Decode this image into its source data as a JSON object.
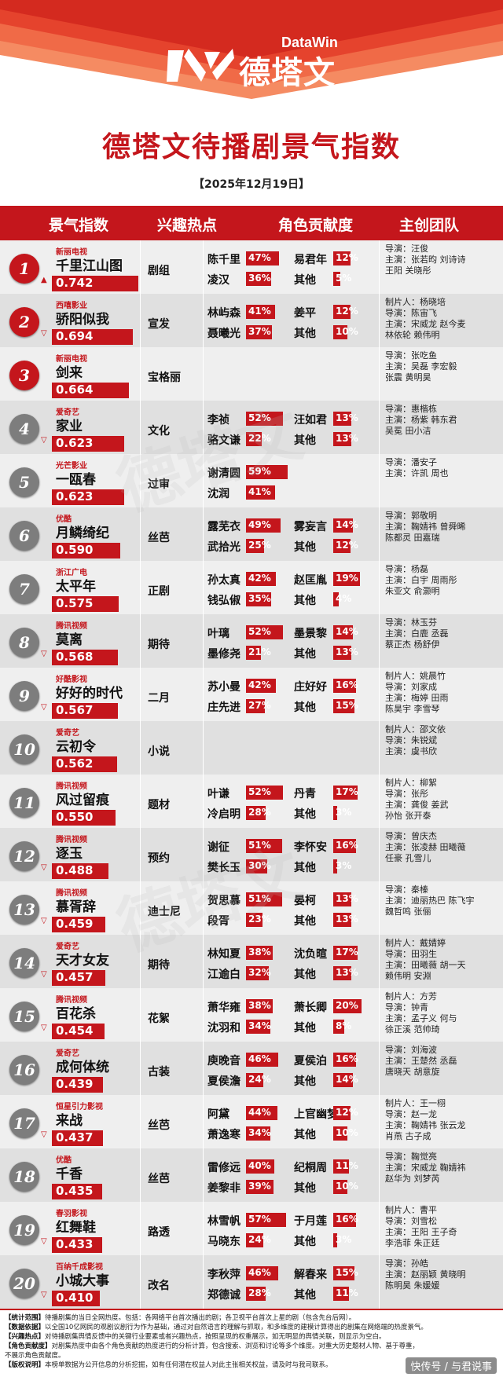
{
  "brand": {
    "logo_cn": "德塔文",
    "logo_en": "DataWin",
    "accent": "#c4161c",
    "band_colors": [
      "#d42a1f",
      "#e5432d",
      "#f06a47",
      "#f58b62"
    ]
  },
  "title": "德塔文待播剧景气指数",
  "date": "【2025年12月19日】",
  "columns": [
    "景气指数",
    "兴趣热点",
    "角色贡献度",
    "主创团队"
  ],
  "rows": [
    {
      "rank": "1",
      "trend": "▲",
      "platform": "新丽电视",
      "name": "千里江山图",
      "index": "0.742",
      "index_frac": 0.742,
      "hot": "剧组",
      "c1": {
        "name": "陈千里",
        "pct": "47%"
      },
      "c2": {
        "name": "易君年",
        "pct": "12%"
      },
      "c3": {
        "name": "凌汉",
        "pct": "36%"
      },
      "c4": {
        "name": "其他",
        "pct": "5%"
      },
      "team": [
        "导演：汪俊",
        "主演：张若昀  刘诗诗",
        "      王阳  关晓彤"
      ]
    },
    {
      "rank": "2",
      "trend": "▽",
      "platform": "西嘻影业",
      "name": "骄阳似我",
      "index": "0.694",
      "index_frac": 0.694,
      "hot": "宣发",
      "c1": {
        "name": "林屿森",
        "pct": "41%"
      },
      "c2": {
        "name": "姜平",
        "pct": "12%"
      },
      "c3": {
        "name": "聂曦光",
        "pct": "37%"
      },
      "c4": {
        "name": "其他",
        "pct": "10%"
      },
      "team": [
        "制片人：杨晓培",
        "导演：陈宙飞",
        "主演：宋威龙  赵今麦",
        "      林依轮  赖伟明"
      ]
    },
    {
      "rank": "3",
      "trend": "",
      "platform": "新丽电视",
      "name": "剑来",
      "index": "0.664",
      "index_frac": 0.664,
      "hot": "宝格丽",
      "c1": {
        "name": "",
        "pct": ""
      },
      "c2": {
        "name": "",
        "pct": ""
      },
      "c3": {
        "name": "",
        "pct": ""
      },
      "c4": {
        "name": "",
        "pct": ""
      },
      "team": [
        "导演：张吃鱼",
        "主演：吴磊  李宏毅",
        "      张震  黄明昊"
      ]
    },
    {
      "rank": "4",
      "trend": "▽",
      "platform": "爱奇艺",
      "name": "家业",
      "index": "0.623",
      "index_frac": 0.623,
      "hot": "文化",
      "c1": {
        "name": "李祯",
        "pct": "52%"
      },
      "c2": {
        "name": "汪如君",
        "pct": "13%"
      },
      "c3": {
        "name": "骆文谦",
        "pct": "22%"
      },
      "c4": {
        "name": "其他",
        "pct": "13%"
      },
      "team": [
        "导演：惠楷栋",
        "主演：杨紫  韩东君",
        "      吴冕  田小洁"
      ]
    },
    {
      "rank": "5",
      "trend": "",
      "platform": "光芒影业",
      "name": "一瓯春",
      "index": "0.623",
      "index_frac": 0.623,
      "hot": "过审",
      "c1": {
        "name": "谢清圆",
        "pct": "59%"
      },
      "c2": {
        "name": "",
        "pct": ""
      },
      "c3": {
        "name": "沈润",
        "pct": "41%"
      },
      "c4": {
        "name": "",
        "pct": ""
      },
      "team": [
        "导演：潘安子",
        "主演：许凯  周也"
      ]
    },
    {
      "rank": "6",
      "trend": "",
      "platform": "优酷",
      "name": "月鳞绮纪",
      "index": "0.590",
      "index_frac": 0.59,
      "hot": "丝芭",
      "c1": {
        "name": "露芜衣",
        "pct": "49%"
      },
      "c2": {
        "name": "雾妄言",
        "pct": "14%"
      },
      "c3": {
        "name": "武拾光",
        "pct": "25%"
      },
      "c4": {
        "name": "其他",
        "pct": "12%"
      },
      "team": [
        "导演：郭敬明",
        "主演：鞠婧祎  曾舜晞",
        "      陈都灵  田嘉瑞"
      ]
    },
    {
      "rank": "7",
      "trend": "",
      "platform": "浙江广电",
      "name": "太平年",
      "index": "0.575",
      "index_frac": 0.575,
      "hot": "正剧",
      "c1": {
        "name": "孙太真",
        "pct": "42%"
      },
      "c2": {
        "name": "赵匡胤",
        "pct": "19%"
      },
      "c3": {
        "name": "钱弘俶",
        "pct": "35%"
      },
      "c4": {
        "name": "其他",
        "pct": "4%"
      },
      "team": [
        "导演：杨磊",
        "主演：白宇  周雨彤",
        "      朱亚文  俞灏明"
      ]
    },
    {
      "rank": "8",
      "trend": "▽",
      "platform": "腾讯视频",
      "name": "莫离",
      "index": "0.568",
      "index_frac": 0.568,
      "hot": "期待",
      "c1": {
        "name": "叶璃",
        "pct": "52%"
      },
      "c2": {
        "name": "墨景黎",
        "pct": "14%"
      },
      "c3": {
        "name": "墨修尧",
        "pct": "21%"
      },
      "c4": {
        "name": "其他",
        "pct": "13%"
      },
      "team": [
        "导演：林玉芬",
        "主演：白鹿  丞磊",
        "      蔡正杰  杨舒伊"
      ]
    },
    {
      "rank": "9",
      "trend": "▽",
      "platform": "好酷影视",
      "name": "好好的时代",
      "index": "0.567",
      "index_frac": 0.567,
      "hot": "二月",
      "c1": {
        "name": "苏小曼",
        "pct": "42%"
      },
      "c2": {
        "name": "庄好好",
        "pct": "16%"
      },
      "c3": {
        "name": "庄先进",
        "pct": "27%"
      },
      "c4": {
        "name": "其他",
        "pct": "15%"
      },
      "team": [
        "制片人：姚晨竹",
        "导演：刘家成",
        "主演：梅婷  田雨",
        "      陈昊宇  李雪琴"
      ]
    },
    {
      "rank": "10",
      "trend": "",
      "platform": "爱奇艺",
      "name": "云初令",
      "index": "0.562",
      "index_frac": 0.562,
      "hot": "小说",
      "c1": {
        "name": "",
        "pct": ""
      },
      "c2": {
        "name": "",
        "pct": ""
      },
      "c3": {
        "name": "",
        "pct": ""
      },
      "c4": {
        "name": "",
        "pct": ""
      },
      "team": [
        "制片人：邵文依",
        "导演：朱锐斌",
        "主演：虞书欣"
      ]
    },
    {
      "rank": "11",
      "trend": "",
      "platform": "腾讯视频",
      "name": "风过留痕",
      "index": "0.550",
      "index_frac": 0.55,
      "hot": "题材",
      "c1": {
        "name": "叶谦",
        "pct": "52%"
      },
      "c2": {
        "name": "丹青",
        "pct": "17%"
      },
      "c3": {
        "name": "冷启明",
        "pct": "28%"
      },
      "c4": {
        "name": "其他",
        "pct": "3%"
      },
      "team": [
        "制片人：柳絮",
        "导演：张彤",
        "主演：龚俊  姜武",
        "      孙怡  张开泰"
      ]
    },
    {
      "rank": "12",
      "trend": "▽",
      "platform": "腾讯视频",
      "name": "逐玉",
      "index": "0.488",
      "index_frac": 0.488,
      "hot": "预约",
      "c1": {
        "name": "谢征",
        "pct": "51%"
      },
      "c2": {
        "name": "李怀安",
        "pct": "16%"
      },
      "c3": {
        "name": "樊长玉",
        "pct": "30%"
      },
      "c4": {
        "name": "其他",
        "pct": "3%"
      },
      "team": [
        "导演：曾庆杰",
        "主演：张凌赫  田曦薇",
        "      任豪  孔雪儿"
      ]
    },
    {
      "rank": "13",
      "trend": "▽",
      "platform": "腾讯视频",
      "name": "慕胥辞",
      "index": "0.459",
      "index_frac": 0.459,
      "hot": "迪士尼",
      "c1": {
        "name": "贺思慕",
        "pct": "51%"
      },
      "c2": {
        "name": "晏柯",
        "pct": "13%"
      },
      "c3": {
        "name": "段胥",
        "pct": "23%"
      },
      "c4": {
        "name": "其他",
        "pct": "13%"
      },
      "team": [
        "导演：秦榛",
        "主演：迪丽热巴  陈飞宇",
        "      魏哲鸣  张俪"
      ]
    },
    {
      "rank": "14",
      "trend": "▽",
      "platform": "爱奇艺",
      "name": "天才女友",
      "index": "0.457",
      "index_frac": 0.457,
      "hot": "期待",
      "c1": {
        "name": "林知夏",
        "pct": "38%"
      },
      "c2": {
        "name": "沈负暄",
        "pct": "17%"
      },
      "c3": {
        "name": "江逾白",
        "pct": "32%"
      },
      "c4": {
        "name": "其他",
        "pct": "13%"
      },
      "team": [
        "制片人：戴婧婷",
        "导演：田羽生",
        "主演：田曦薇  胡一天",
        "      赖伟明  安淵"
      ]
    },
    {
      "rank": "15",
      "trend": "▽",
      "platform": "腾讯视频",
      "name": "百花杀",
      "index": "0.454",
      "index_frac": 0.454,
      "hot": "花絮",
      "c1": {
        "name": "萧华雍",
        "pct": "38%"
      },
      "c2": {
        "name": "萧长卿",
        "pct": "20%"
      },
      "c3": {
        "name": "沈羽和",
        "pct": "34%"
      },
      "c4": {
        "name": "其他",
        "pct": "8%"
      },
      "team": [
        "制片人：方芳",
        "导演：钟青",
        "主演：孟子义  何与",
        "      徐正溪  范帅琦"
      ]
    },
    {
      "rank": "16",
      "trend": "",
      "platform": "爱奇艺",
      "name": "成何体统",
      "index": "0.439",
      "index_frac": 0.439,
      "hot": "古装",
      "c1": {
        "name": "庾晚音",
        "pct": "46%"
      },
      "c2": {
        "name": "夏侯泊",
        "pct": "16%"
      },
      "c3": {
        "name": "夏侯澹",
        "pct": "24%"
      },
      "c4": {
        "name": "其他",
        "pct": "14%"
      },
      "team": [
        "导演：刘海波",
        "主演：王楚然  丞磊",
        "      唐晓天  胡意旋"
      ]
    },
    {
      "rank": "17",
      "trend": "▽",
      "platform": "恒星引力影视",
      "name": "来战",
      "index": "0.437",
      "index_frac": 0.437,
      "hot": "丝芭",
      "c1": {
        "name": "阿黛",
        "pct": "44%"
      },
      "c2": {
        "name": "上官幽梦",
        "pct": "12%"
      },
      "c3": {
        "name": "萧逸寒",
        "pct": "34%"
      },
      "c4": {
        "name": "其他",
        "pct": "10%"
      },
      "team": [
        "制片人：王一栩",
        "导演：赵一龙",
        "主演：鞠婧祎  张云龙",
        "      肖燕  古子成"
      ]
    },
    {
      "rank": "18",
      "trend": "",
      "platform": "优酷",
      "name": "千香",
      "index": "0.435",
      "index_frac": 0.435,
      "hot": "丝芭",
      "c1": {
        "name": "雷修远",
        "pct": "40%"
      },
      "c2": {
        "name": "纪桐周",
        "pct": "11%"
      },
      "c3": {
        "name": "姜黎非",
        "pct": "39%"
      },
      "c4": {
        "name": "其他",
        "pct": "10%"
      },
      "team": [
        "导演：鞠觉亮",
        "主演：宋威龙  鞠婧祎",
        "      赵华为  刘梦芮"
      ]
    },
    {
      "rank": "19",
      "trend": "▽",
      "platform": "春羽影视",
      "name": "红舞鞋",
      "index": "0.433",
      "index_frac": 0.433,
      "hot": "路透",
      "c1": {
        "name": "林雪帆",
        "pct": "57%"
      },
      "c2": {
        "name": "于月莲",
        "pct": "16%"
      },
      "c3": {
        "name": "马晓东",
        "pct": "24%"
      },
      "c4": {
        "name": "其他",
        "pct": "3%"
      },
      "team": [
        "制片人：曹平",
        "导演：刘雪松",
        "主演：王阳  王子奇",
        "      李浩菲  朱正廷"
      ]
    },
    {
      "rank": "20",
      "trend": "▽",
      "platform": "百纳千成影视",
      "name": "小城大事",
      "index": "0.410",
      "index_frac": 0.41,
      "hot": "改名",
      "c1": {
        "name": "李秋萍",
        "pct": "46%"
      },
      "c2": {
        "name": "解春来",
        "pct": "15%"
      },
      "c3": {
        "name": "郑德诚",
        "pct": "28%"
      },
      "c4": {
        "name": "其他",
        "pct": "11%"
      },
      "team": [
        "导演：孙皓",
        "主演：赵丽颖  黄晓明",
        "      陈明昊  朱媛媛"
      ]
    }
  ],
  "footnotes": [
    {
      "label": "【统计范围】",
      "text": "待播剧集的当日全网热度。包括：各网络平台首次播出的剧；各卫视平台首次上星的剧（包含先台后网）。"
    },
    {
      "label": "【数据依据】",
      "text": "以全国10亿网民的观剧议剧行为作为基础，通过对自然语言的理解与抓取，和多维度的建模计算得出的剧集在网络端的热度景气。"
    },
    {
      "label": "【兴趣热点】",
      "text": "对待播剧集舆情反馈中的关键行业要素或者兴趣热点，按照呈现的权重展示，如无明显的舆情关联，则显示为空白。"
    },
    {
      "label": "【角色贡献度】",
      "text": "对剧集热度中由各个角色贡献的热度进行的分析计算，包含搜索、浏览和讨论等多个维度。对重大历史题材人物、基于尊重，"
    },
    {
      "label": "",
      "text": "不展示角色贡献度。"
    },
    {
      "label": "【版权说明】",
      "text": "本榜单数据为公开信息的分析挖掘，如有任何潜在权益人对此主张相关权益，请及时与我司联系。"
    }
  ],
  "corner": "快传号 / 与君说事"
}
